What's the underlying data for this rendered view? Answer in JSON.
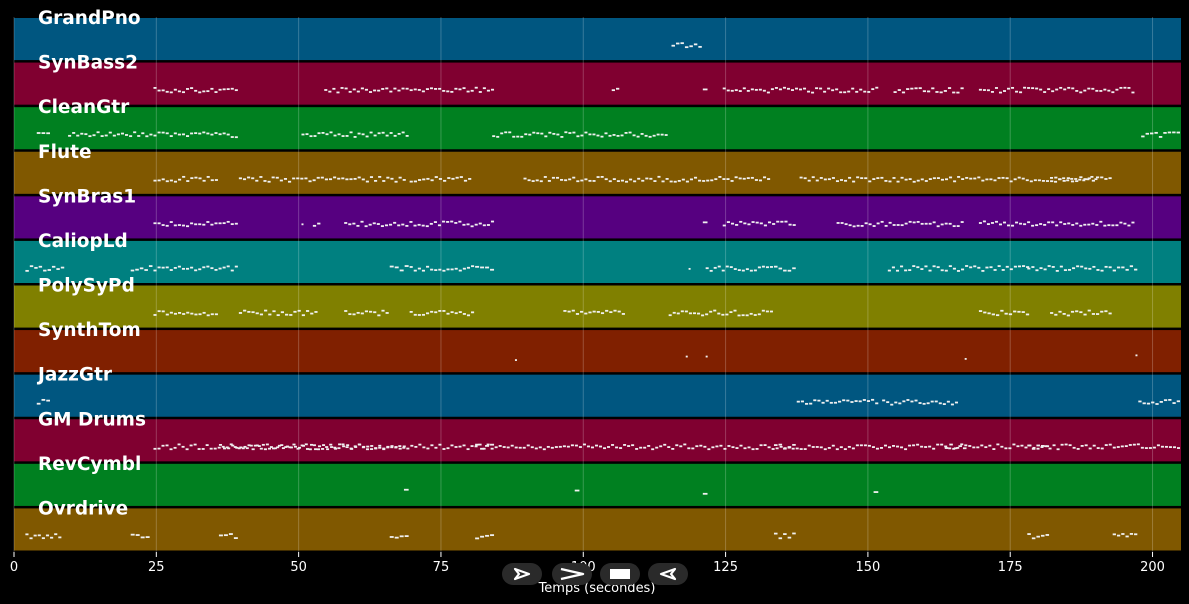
{
  "chart_data": {
    "type": "piano-roll",
    "xlabel": "Temps (secondes)",
    "xlim": [
      0,
      205
    ],
    "xticks": [
      0,
      25,
      50,
      75,
      100,
      125,
      150,
      175,
      200
    ],
    "grid": true,
    "tracks": [
      {
        "name": "GrandPno",
        "color": "#005680",
        "segments": [
          [
            115.5,
            121
          ]
        ]
      },
      {
        "name": "SynBass2",
        "color": "#800030",
        "segments": [
          [
            24.5,
            39.5
          ],
          [
            54.5,
            84.5
          ],
          [
            105,
            106.5
          ],
          [
            121,
            122
          ],
          [
            124.5,
            152
          ],
          [
            154.5,
            167
          ],
          [
            169.5,
            197
          ]
        ]
      },
      {
        "name": "CleanGtr",
        "color": "#008020",
        "segments": [
          [
            4,
            6.5
          ],
          [
            9.5,
            39.5
          ],
          [
            50.5,
            69.5
          ],
          [
            84,
            115
          ],
          [
            198,
            205
          ]
        ]
      },
      {
        "name": "Flute",
        "color": "#805800",
        "segments": [
          [
            24.5,
            36
          ],
          [
            39.5,
            69
          ],
          [
            69.5,
            80.5
          ],
          [
            89.5,
            133
          ],
          [
            138,
            190.5
          ],
          [
            182,
            193
          ]
        ]
      },
      {
        "name": "SynBras1",
        "color": "#560080",
        "segments": [
          [
            24.5,
            39.5
          ],
          [
            50.5,
            51
          ],
          [
            52.5,
            54
          ],
          [
            58,
            84.5
          ],
          [
            121,
            122
          ],
          [
            124.5,
            137.5
          ],
          [
            144.5,
            167
          ],
          [
            169.5,
            197
          ]
        ]
      },
      {
        "name": "CaliopLd",
        "color": "#008080",
        "segments": [
          [
            2,
            9
          ],
          [
            20.5,
            24.5
          ],
          [
            24.5,
            39.5
          ],
          [
            66,
            69.5
          ],
          [
            69.5,
            81
          ],
          [
            81,
            84.5
          ],
          [
            118.5,
            119
          ],
          [
            121.5,
            133.5
          ],
          [
            133.5,
            137.5
          ],
          [
            153.5,
            178.5
          ],
          [
            178,
            193
          ],
          [
            193,
            197.5
          ]
        ]
      },
      {
        "name": "PolySyPd",
        "color": "#808000",
        "segments": [
          [
            24.5,
            36
          ],
          [
            39.5,
            53.5
          ],
          [
            58,
            66
          ],
          [
            69.5,
            81
          ],
          [
            96.5,
            107.5
          ],
          [
            115,
            133.5
          ],
          [
            169.5,
            178.5
          ],
          [
            182,
            193
          ]
        ]
      },
      {
        "name": "SynthTom",
        "color": "#802000",
        "segments": [
          [
            88,
            88.5
          ],
          [
            118,
            118.5
          ],
          [
            121.5,
            122
          ],
          [
            167,
            167.5
          ],
          [
            197,
            197.5
          ]
        ]
      },
      {
        "name": "JazzGtr",
        "color": "#005680",
        "segments": [
          [
            4,
            6.5
          ],
          [
            137.5,
            152
          ],
          [
            152.5,
            166
          ],
          [
            197.5,
            205
          ]
        ]
      },
      {
        "name": "GM Drums",
        "color": "#800030",
        "segments": [
          [
            24.5,
            205
          ],
          [
            36,
            69
          ],
          [
            81,
            84.5
          ],
          [
            133.5,
            137.5
          ],
          [
            163.5,
            167.5
          ],
          [
            178,
            182
          ]
        ]
      },
      {
        "name": "RevCymbl",
        "color": "#008020",
        "segments": [
          [
            68.5,
            69.5
          ],
          [
            98.5,
            99.5
          ],
          [
            121,
            122
          ],
          [
            151,
            152
          ]
        ]
      },
      {
        "name": "Ovrdrive",
        "color": "#805800",
        "segments": [
          [
            2,
            8.5
          ],
          [
            20.5,
            24
          ],
          [
            36,
            39.5
          ],
          [
            66,
            69.5
          ],
          [
            81,
            84.5
          ],
          [
            133.5,
            137.5
          ],
          [
            178,
            182
          ],
          [
            193,
            197.5
          ]
        ]
      }
    ]
  },
  "controls": {
    "play_icon": "play-icon",
    "forward_icon": "fast-forward-icon",
    "stop_icon": "stop-icon",
    "back_icon": "rewind-icon"
  }
}
